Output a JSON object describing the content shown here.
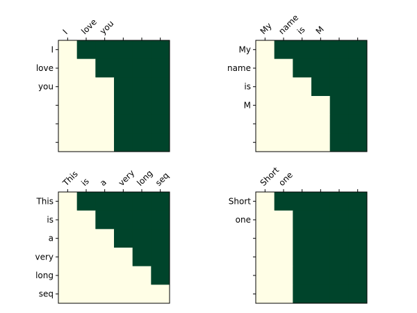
{
  "colors": {
    "unmasked": "#fffee6",
    "masked": "#00442b",
    "axis": "#000000"
  },
  "chart_data": [
    {
      "type": "heatmap",
      "title": "",
      "xlabel": "",
      "ylabel": "",
      "grid_size": 6,
      "tokens": [
        "I",
        "love",
        "you"
      ],
      "x_tick_labels": [
        "I",
        "love",
        "you",
        "",
        "",
        ""
      ],
      "y_tick_labels": [
        "I",
        "love",
        "you",
        "",
        "",
        ""
      ],
      "values": [
        [
          0,
          1,
          1,
          1,
          1,
          1
        ],
        [
          0,
          0,
          1,
          1,
          1,
          1
        ],
        [
          0,
          0,
          0,
          1,
          1,
          1
        ],
        [
          0,
          0,
          0,
          1,
          1,
          1
        ],
        [
          0,
          0,
          0,
          1,
          1,
          1
        ],
        [
          0,
          0,
          0,
          1,
          1,
          1
        ]
      ]
    },
    {
      "type": "heatmap",
      "title": "",
      "xlabel": "",
      "ylabel": "",
      "grid_size": 6,
      "tokens": [
        "My",
        "name",
        "is",
        "M"
      ],
      "x_tick_labels": [
        "My",
        "name",
        "is",
        "M",
        "",
        ""
      ],
      "y_tick_labels": [
        "My",
        "name",
        "is",
        "M",
        "",
        ""
      ],
      "values": [
        [
          0,
          1,
          1,
          1,
          1,
          1
        ],
        [
          0,
          0,
          1,
          1,
          1,
          1
        ],
        [
          0,
          0,
          0,
          1,
          1,
          1
        ],
        [
          0,
          0,
          0,
          0,
          1,
          1
        ],
        [
          0,
          0,
          0,
          0,
          1,
          1
        ],
        [
          0,
          0,
          0,
          0,
          1,
          1
        ]
      ]
    },
    {
      "type": "heatmap",
      "title": "",
      "xlabel": "",
      "ylabel": "",
      "grid_size": 6,
      "tokens": [
        "This",
        "is",
        "a",
        "very",
        "long",
        "seq"
      ],
      "x_tick_labels": [
        "This",
        "is",
        "a",
        "very",
        "long",
        "seq"
      ],
      "y_tick_labels": [
        "This",
        "is",
        "a",
        "very",
        "long",
        "seq"
      ],
      "values": [
        [
          0,
          1,
          1,
          1,
          1,
          1
        ],
        [
          0,
          0,
          1,
          1,
          1,
          1
        ],
        [
          0,
          0,
          0,
          1,
          1,
          1
        ],
        [
          0,
          0,
          0,
          0,
          1,
          1
        ],
        [
          0,
          0,
          0,
          0,
          0,
          1
        ],
        [
          0,
          0,
          0,
          0,
          0,
          0
        ]
      ]
    },
    {
      "type": "heatmap",
      "title": "",
      "xlabel": "",
      "ylabel": "",
      "grid_size": 6,
      "tokens": [
        "Short",
        "one"
      ],
      "x_tick_labels": [
        "Short",
        "one",
        "",
        "",
        "",
        ""
      ],
      "y_tick_labels": [
        "Short",
        "one",
        "",
        "",
        "",
        ""
      ],
      "values": [
        [
          0,
          1,
          1,
          1,
          1,
          1
        ],
        [
          0,
          0,
          1,
          1,
          1,
          1
        ],
        [
          0,
          0,
          1,
          1,
          1,
          1
        ],
        [
          0,
          0,
          1,
          1,
          1,
          1
        ],
        [
          0,
          0,
          1,
          1,
          1,
          1
        ],
        [
          0,
          0,
          1,
          1,
          1,
          1
        ]
      ]
    }
  ]
}
